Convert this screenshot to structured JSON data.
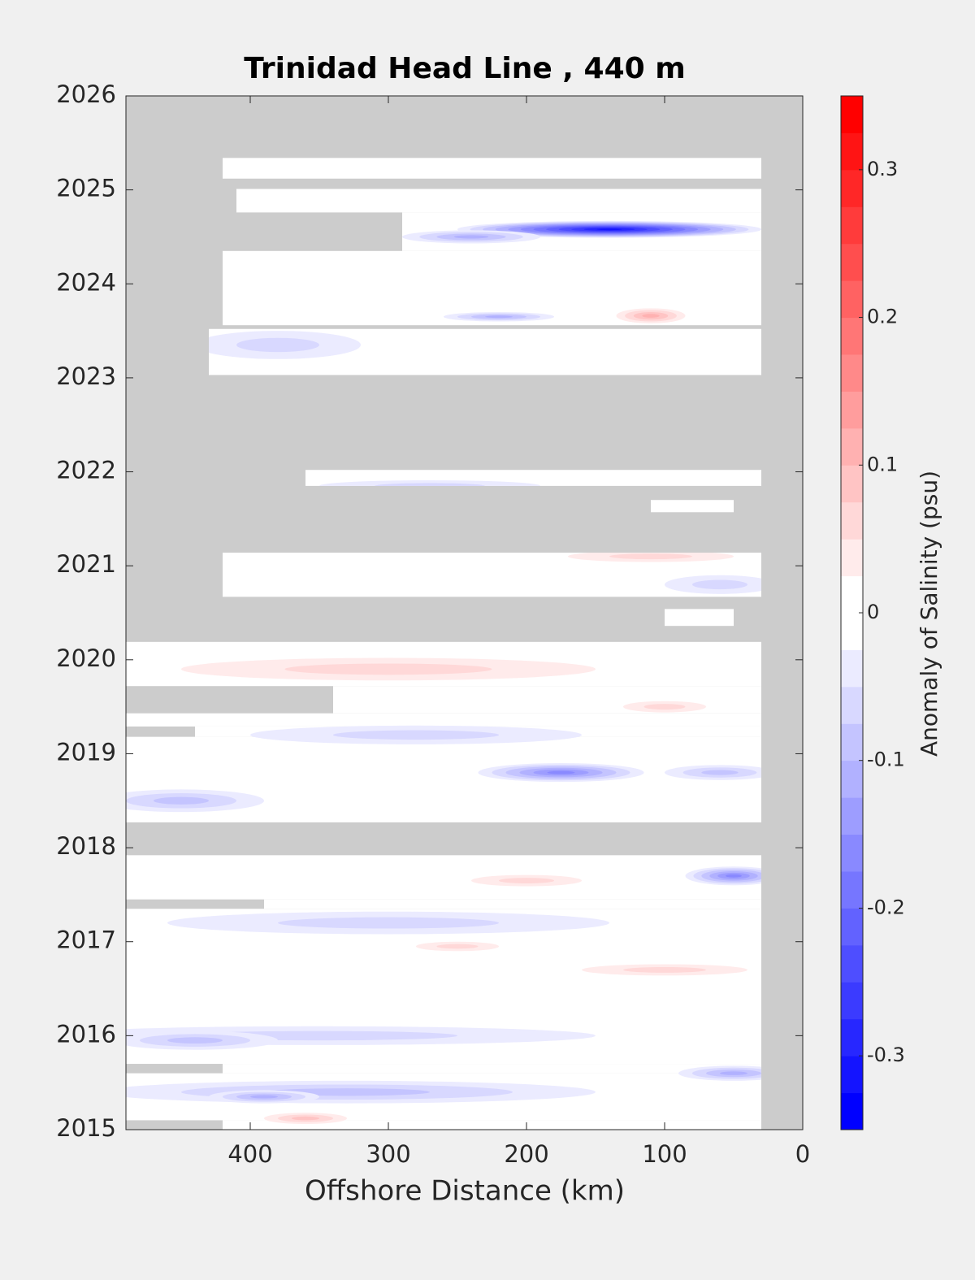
{
  "chart_data": {
    "type": "filled_contour",
    "title": "Trinidad Head Line , 440 m",
    "xlabel": "Offshore Distance (km)",
    "colorbar_label": "Anomaly of Salinity (psu)",
    "xlim": [
      490,
      0
    ],
    "ylim": [
      2015,
      2026
    ],
    "xticks": [
      400,
      300,
      200,
      100,
      0
    ],
    "yticks": [
      2015,
      2016,
      2017,
      2018,
      2019,
      2020,
      2021,
      2022,
      2023,
      2024,
      2025,
      2026
    ],
    "clim": [
      -0.35,
      0.35
    ],
    "cticks": [
      -0.3,
      -0.2,
      -0.1,
      0,
      0.1,
      0.2,
      0.3
    ],
    "level_step": 0.025,
    "colormap": [
      "#0000ff",
      "#ffffff",
      "#ff0000"
    ],
    "missing_color": "#cccccc",
    "coverage": [
      [
        420,
        30,
        2025.12,
        2025.34
      ],
      [
        410,
        30,
        2024.76,
        2025.01
      ],
      [
        290,
        30,
        2024.35,
        2024.76
      ],
      [
        420,
        30,
        2023.56,
        2024.35
      ],
      [
        430,
        30,
        2023.03,
        2023.52
      ],
      [
        360,
        30,
        2021.85,
        2022.02
      ],
      [
        110,
        50,
        2021.57,
        2021.7
      ],
      [
        420,
        30,
        2020.67,
        2021.14
      ],
      [
        100,
        50,
        2020.36,
        2020.54
      ],
      [
        490,
        30,
        2019.72,
        2020.19
      ],
      [
        340,
        30,
        2019.43,
        2019.72
      ],
      [
        490,
        30,
        2019.29,
        2019.43
      ],
      [
        440,
        30,
        2019.18,
        2019.29
      ],
      [
        490,
        30,
        2018.27,
        2019.18
      ],
      [
        490,
        30,
        2017.45,
        2017.92
      ],
      [
        390,
        30,
        2017.35,
        2017.45
      ],
      [
        490,
        30,
        2015.7,
        2017.35
      ],
      [
        420,
        30,
        2015.6,
        2015.7
      ],
      [
        490,
        30,
        2015.1,
        2015.6
      ],
      [
        420,
        30,
        2015,
        2015.1
      ]
    ],
    "anomalies": [
      [
        140,
        2024.58,
        110,
        0.09,
        -0.3
      ],
      [
        240,
        2024.5,
        50,
        0.07,
        -0.12
      ],
      [
        110,
        2023.66,
        25,
        0.08,
        0.12
      ],
      [
        380,
        2023.35,
        60,
        0.15,
        -0.05
      ],
      [
        220,
        2023.65,
        40,
        0.05,
        -0.1
      ],
      [
        110,
        2021.1,
        60,
        0.06,
        0.06
      ],
      [
        270,
        2021.85,
        80,
        0.06,
        -0.06
      ],
      [
        60,
        2020.8,
        40,
        0.1,
        -0.05
      ],
      [
        300,
        2019.9,
        150,
        0.12,
        0.05
      ],
      [
        100,
        2019.5,
        30,
        0.06,
        0.07
      ],
      [
        280,
        2019.2,
        120,
        0.1,
        -0.05
      ],
      [
        175,
        2018.8,
        60,
        0.1,
        -0.15
      ],
      [
        60,
        2018.8,
        40,
        0.08,
        -0.08
      ],
      [
        450,
        2018.5,
        60,
        0.12,
        -0.08
      ],
      [
        50,
        2017.7,
        35,
        0.1,
        -0.15
      ],
      [
        200,
        2017.65,
        40,
        0.06,
        0.05
      ],
      [
        300,
        2017.2,
        160,
        0.12,
        -0.05
      ],
      [
        250,
        2016.95,
        30,
        0.05,
        0.06
      ],
      [
        100,
        2016.7,
        60,
        0.06,
        0.05
      ],
      [
        350,
        2016.0,
        200,
        0.1,
        -0.05
      ],
      [
        440,
        2015.95,
        60,
        0.1,
        -0.08
      ],
      [
        330,
        2015.4,
        180,
        0.12,
        -0.08
      ],
      [
        390,
        2015.35,
        40,
        0.07,
        -0.12
      ],
      [
        360,
        2015.12,
        30,
        0.06,
        0.08
      ],
      [
        50,
        2015.6,
        40,
        0.08,
        -0.1
      ]
    ]
  }
}
